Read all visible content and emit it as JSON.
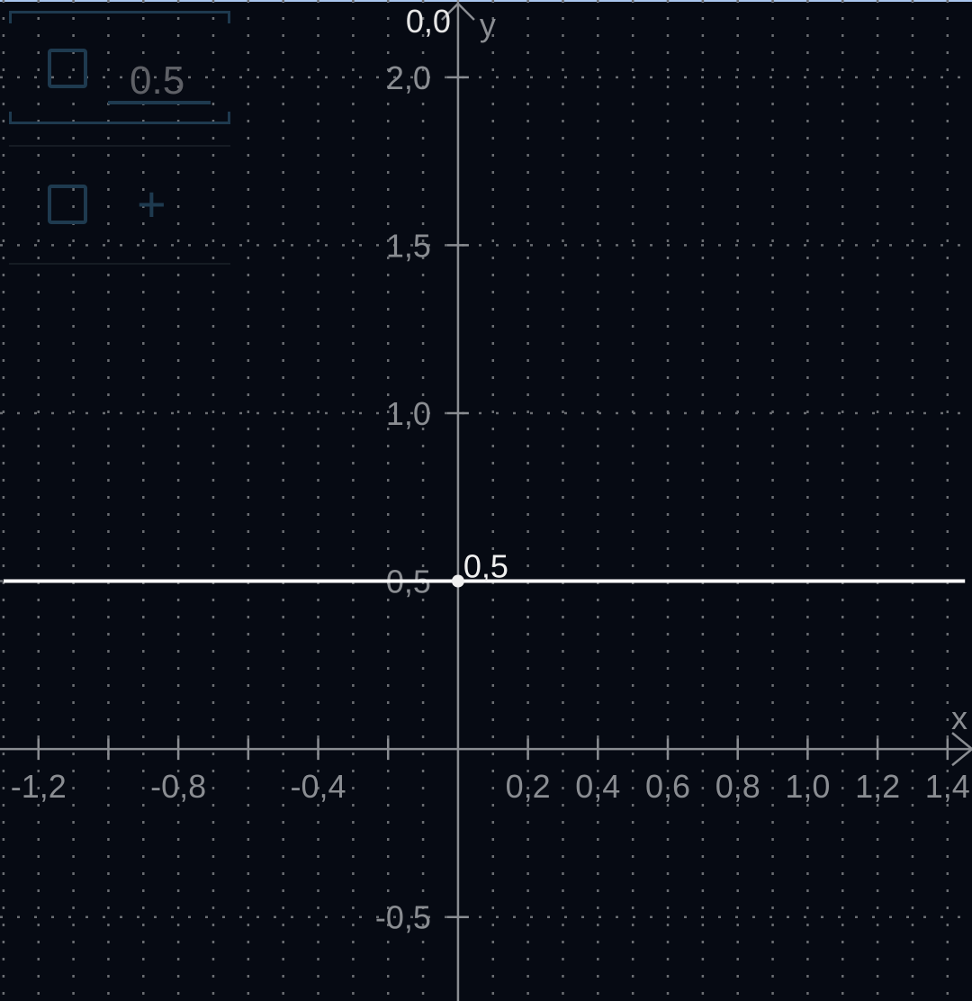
{
  "graph": {
    "origin_label": "0,0",
    "y_axis_label": "y",
    "x_axis_label": "x",
    "point_label": "0,5",
    "colors": {
      "background": "#060a13",
      "axis": "#8a8d92",
      "grid": "#6a6d72",
      "function": "#ffffff",
      "panel": "#1e3a4f"
    }
  },
  "expressions": [
    {
      "value": "0.5",
      "checked": false
    },
    {
      "add_icon": "plus-icon",
      "checked": false
    }
  ],
  "chart_data": {
    "type": "line",
    "series": [
      {
        "expression": "0.5",
        "x": [
          -1.3,
          1.45
        ],
        "y": [
          0.5,
          0.5
        ]
      }
    ],
    "points": [
      {
        "x": 0,
        "y": 0.5,
        "label": "0,5"
      }
    ],
    "xlim": [
      -1.31,
      1.47
    ],
    "ylim": [
      -0.75,
      2.23
    ],
    "x_ticks": [
      -1.2,
      -1.0,
      -0.8,
      -0.6,
      -0.4,
      -0.2,
      0.2,
      0.4,
      0.6,
      0.8,
      1.0,
      1.2,
      1.4
    ],
    "x_tick_labels": [
      "-1,2",
      "",
      "-0,8",
      "",
      "-0,4",
      "",
      "0,2",
      "0,4",
      "0,6",
      "0,8",
      "1,0",
      "1,2",
      "1,4"
    ],
    "y_ticks": [
      -0.5,
      0.5,
      1.0,
      1.5,
      2.0
    ],
    "y_tick_labels": [
      "-0,5",
      "0,5",
      "1,0",
      "1,5",
      "2,0"
    ],
    "grid": true
  }
}
